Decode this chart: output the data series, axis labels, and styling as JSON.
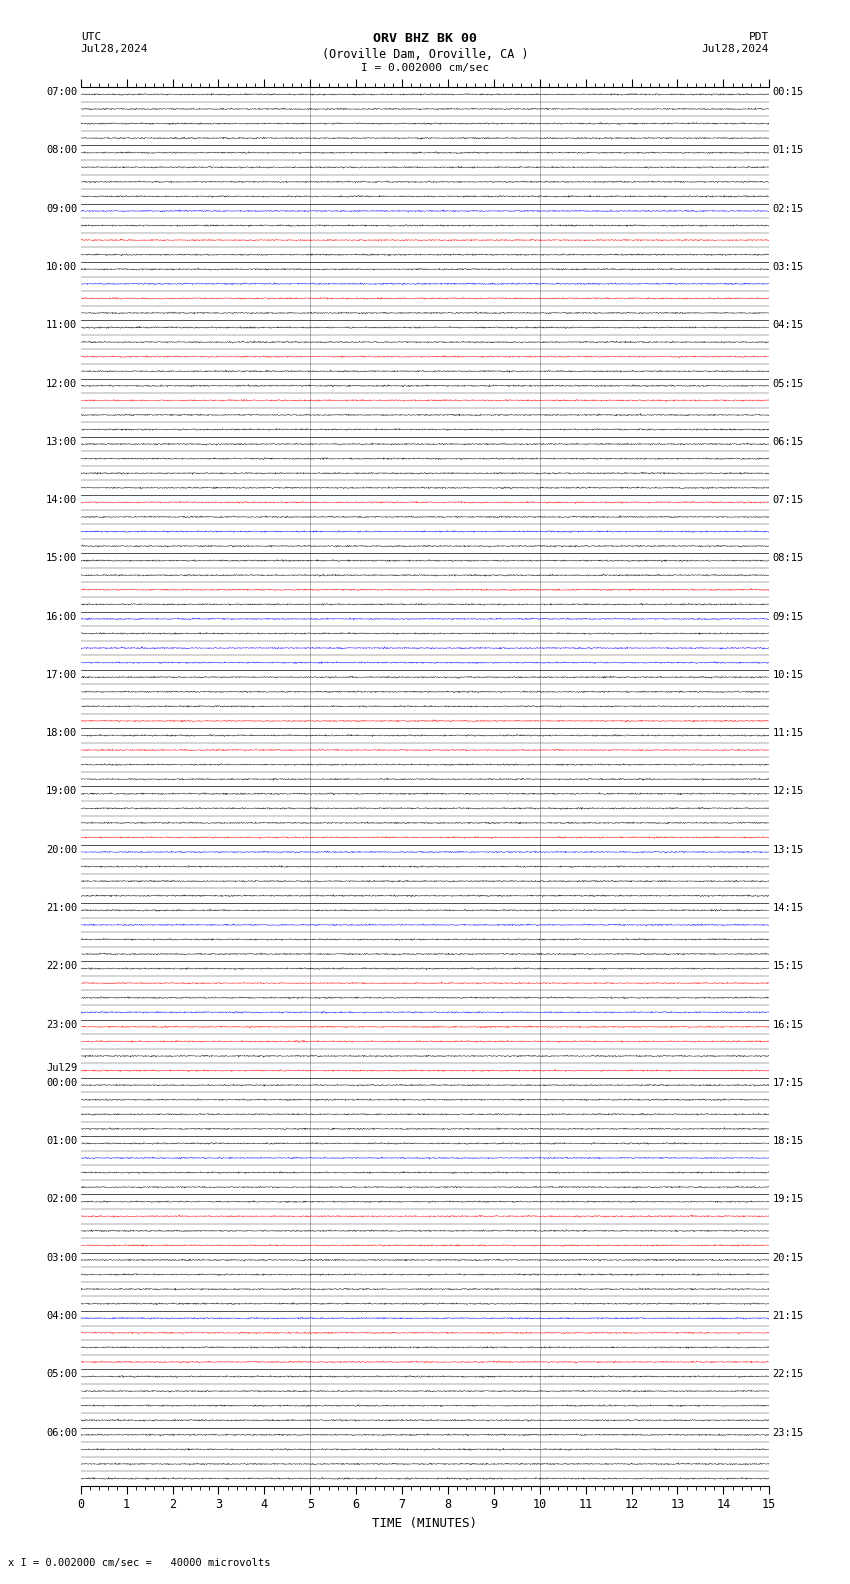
{
  "title_line1": "ORV BHZ BK 00",
  "title_line2": "(Oroville Dam, Oroville, CA )",
  "scale_text": "I = 0.002000 cm/sec",
  "footnote": "x I = 0.002000 cm/sec =   40000 microvolts",
  "left_label": "UTC",
  "left_date": "Jul28,2024",
  "right_label": "PDT",
  "right_date": "Jul28,2024",
  "xlabel": "TIME (MINUTES)",
  "xmin": 0,
  "xmax": 15,
  "num_traces": 96,
  "bg_color": "#ffffff",
  "trace_color": "#000000",
  "grid_color": "#aaaaaa",
  "left_times_indexed": {
    "0": "07:00",
    "4": "08:00",
    "8": "09:00",
    "12": "10:00",
    "16": "11:00",
    "20": "12:00",
    "24": "13:00",
    "28": "14:00",
    "32": "15:00",
    "36": "16:00",
    "40": "17:00",
    "44": "18:00",
    "48": "19:00",
    "52": "20:00",
    "56": "21:00",
    "60": "22:00",
    "64": "23:00",
    "68": "Jul29\n00:00",
    "72": "01:00",
    "76": "02:00",
    "80": "03:00",
    "84": "04:00",
    "88": "05:00",
    "92": "06:00"
  },
  "right_times_indexed": {
    "0": "00:15",
    "4": "01:15",
    "8": "02:15",
    "12": "03:15",
    "16": "04:15",
    "20": "05:15",
    "24": "06:15",
    "28": "07:15",
    "32": "08:15",
    "36": "09:15",
    "40": "10:15",
    "44": "11:15",
    "48": "12:15",
    "52": "13:15",
    "56": "14:15",
    "60": "15:15",
    "64": "16:15",
    "68": "17:15",
    "72": "18:15",
    "76": "19:15",
    "80": "20:15",
    "84": "21:15",
    "88": "22:15",
    "92": "23:15"
  },
  "vertical_grid_lines": [
    5,
    10
  ],
  "noise_seed": 42
}
